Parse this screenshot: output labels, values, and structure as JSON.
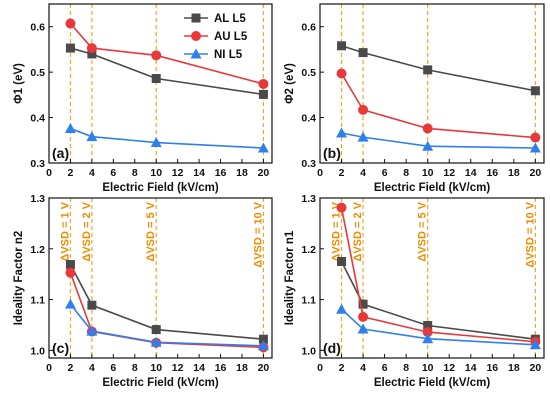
{
  "accent_colors": {
    "vsd_line": "#f5a623",
    "vsd_text": "#f08a00"
  },
  "chart_data": [
    {
      "type": "line",
      "panel_label": "(a)",
      "xlabel": "Electric Field (kV/cm)",
      "ylabel": "Φ1 (eV)",
      "x": [
        2,
        4,
        10,
        20
      ],
      "xlim": [
        0,
        20.8
      ],
      "ylim": [
        0.3,
        0.65
      ],
      "xticks": [
        0,
        2,
        4,
        6,
        8,
        10,
        12,
        14,
        16,
        18,
        20
      ],
      "yticks": [
        0.3,
        0.4,
        0.5,
        0.6
      ],
      "ytick_labels": [
        "0.3",
        "0.4",
        "0.5",
        "0.6"
      ],
      "vsd_lines": [
        2,
        4,
        10,
        20
      ],
      "vsd_labels": [],
      "legend": {
        "position": "top-right"
      },
      "series": [
        {
          "name": "AL L5",
          "color": "#4a4a4a",
          "marker": "square",
          "values": [
            0.553,
            0.54,
            0.486,
            0.451
          ]
        },
        {
          "name": "AU L5",
          "color": "#e8383a",
          "marker": "circle",
          "values": [
            0.607,
            0.553,
            0.537,
            0.474
          ]
        },
        {
          "name": "NI L5",
          "color": "#2f80ed",
          "marker": "triangle",
          "values": [
            0.376,
            0.358,
            0.345,
            0.333
          ]
        }
      ]
    },
    {
      "type": "line",
      "panel_label": "(b)",
      "xlabel": "Electric Field (kV/cm)",
      "ylabel": "Φ2 (eV)",
      "x": [
        2,
        4,
        10,
        20
      ],
      "xlim": [
        0,
        20.8
      ],
      "ylim": [
        0.3,
        0.65
      ],
      "xticks": [
        0,
        2,
        4,
        6,
        8,
        10,
        12,
        14,
        16,
        18,
        20
      ],
      "yticks": [
        0.3,
        0.4,
        0.5,
        0.6
      ],
      "ytick_labels": [
        "0.3",
        "0.4",
        "0.5",
        "0.6"
      ],
      "vsd_lines": [
        2,
        4,
        10,
        20
      ],
      "vsd_labels": [],
      "series": [
        {
          "name": "AL L5",
          "color": "#4a4a4a",
          "marker": "square",
          "values": [
            0.558,
            0.543,
            0.505,
            0.459
          ]
        },
        {
          "name": "AU L5",
          "color": "#e8383a",
          "marker": "circle",
          "values": [
            0.497,
            0.417,
            0.376,
            0.356
          ]
        },
        {
          "name": "NI L5",
          "color": "#2f80ed",
          "marker": "triangle",
          "values": [
            0.366,
            0.357,
            0.337,
            0.333
          ]
        }
      ]
    },
    {
      "type": "line",
      "panel_label": "(c)",
      "xlabel": "Electric Field (kV/cm)",
      "ylabel": "Ideality Factor n2",
      "x": [
        2,
        4,
        10,
        20
      ],
      "xlim": [
        0,
        20.8
      ],
      "ylim": [
        0.985,
        1.3
      ],
      "xticks": [
        0,
        2,
        4,
        6,
        8,
        10,
        12,
        14,
        16,
        18,
        20
      ],
      "yticks": [
        1.0,
        1.1,
        1.2,
        1.3
      ],
      "ytick_labels": [
        "1.0",
        "1.1",
        "1.2",
        "1.3"
      ],
      "vsd_lines": [
        2,
        4,
        10,
        20
      ],
      "vsd_labels": [
        "ΔVSD = 1 V",
        "ΔVSD = 2 V",
        "ΔVSD = 5 V",
        "ΔVSD = 10 V"
      ],
      "series": [
        {
          "name": "AL L5",
          "color": "#4a4a4a",
          "marker": "square",
          "values": [
            1.169,
            1.089,
            1.041,
            1.022
          ]
        },
        {
          "name": "AU L5",
          "color": "#e8383a",
          "marker": "circle",
          "values": [
            1.153,
            1.037,
            1.015,
            1.006
          ]
        },
        {
          "name": "NI L5",
          "color": "#2f80ed",
          "marker": "triangle",
          "values": [
            1.091,
            1.038,
            1.016,
            1.009
          ]
        }
      ]
    },
    {
      "type": "line",
      "panel_label": "(d)",
      "xlabel": "Electric Field (kV/cm)",
      "ylabel": "Ideality Factor n1",
      "x": [
        2,
        4,
        10,
        20
      ],
      "xlim": [
        0,
        20.8
      ],
      "ylim": [
        0.985,
        1.3
      ],
      "xticks": [
        0,
        2,
        4,
        6,
        8,
        10,
        12,
        14,
        16,
        18,
        20
      ],
      "yticks": [
        1.0,
        1.1,
        1.2,
        1.3
      ],
      "ytick_labels": [
        "1.0",
        "1.1",
        "1.2",
        "1.3"
      ],
      "vsd_lines": [
        2,
        4,
        10,
        20
      ],
      "vsd_labels": [
        "ΔVSD = 1 V",
        "ΔVSD = 2 V",
        "ΔVSD = 5 V",
        "ΔVSD = 10 V"
      ],
      "series": [
        {
          "name": "AL L5",
          "color": "#4a4a4a",
          "marker": "square",
          "values": [
            1.175,
            1.091,
            1.049,
            1.022
          ]
        },
        {
          "name": "AU L5",
          "color": "#e8383a",
          "marker": "circle",
          "values": [
            1.281,
            1.066,
            1.036,
            1.017
          ]
        },
        {
          "name": "NI L5",
          "color": "#2f80ed",
          "marker": "triangle",
          "values": [
            1.081,
            1.042,
            1.023,
            1.011
          ]
        }
      ]
    }
  ]
}
